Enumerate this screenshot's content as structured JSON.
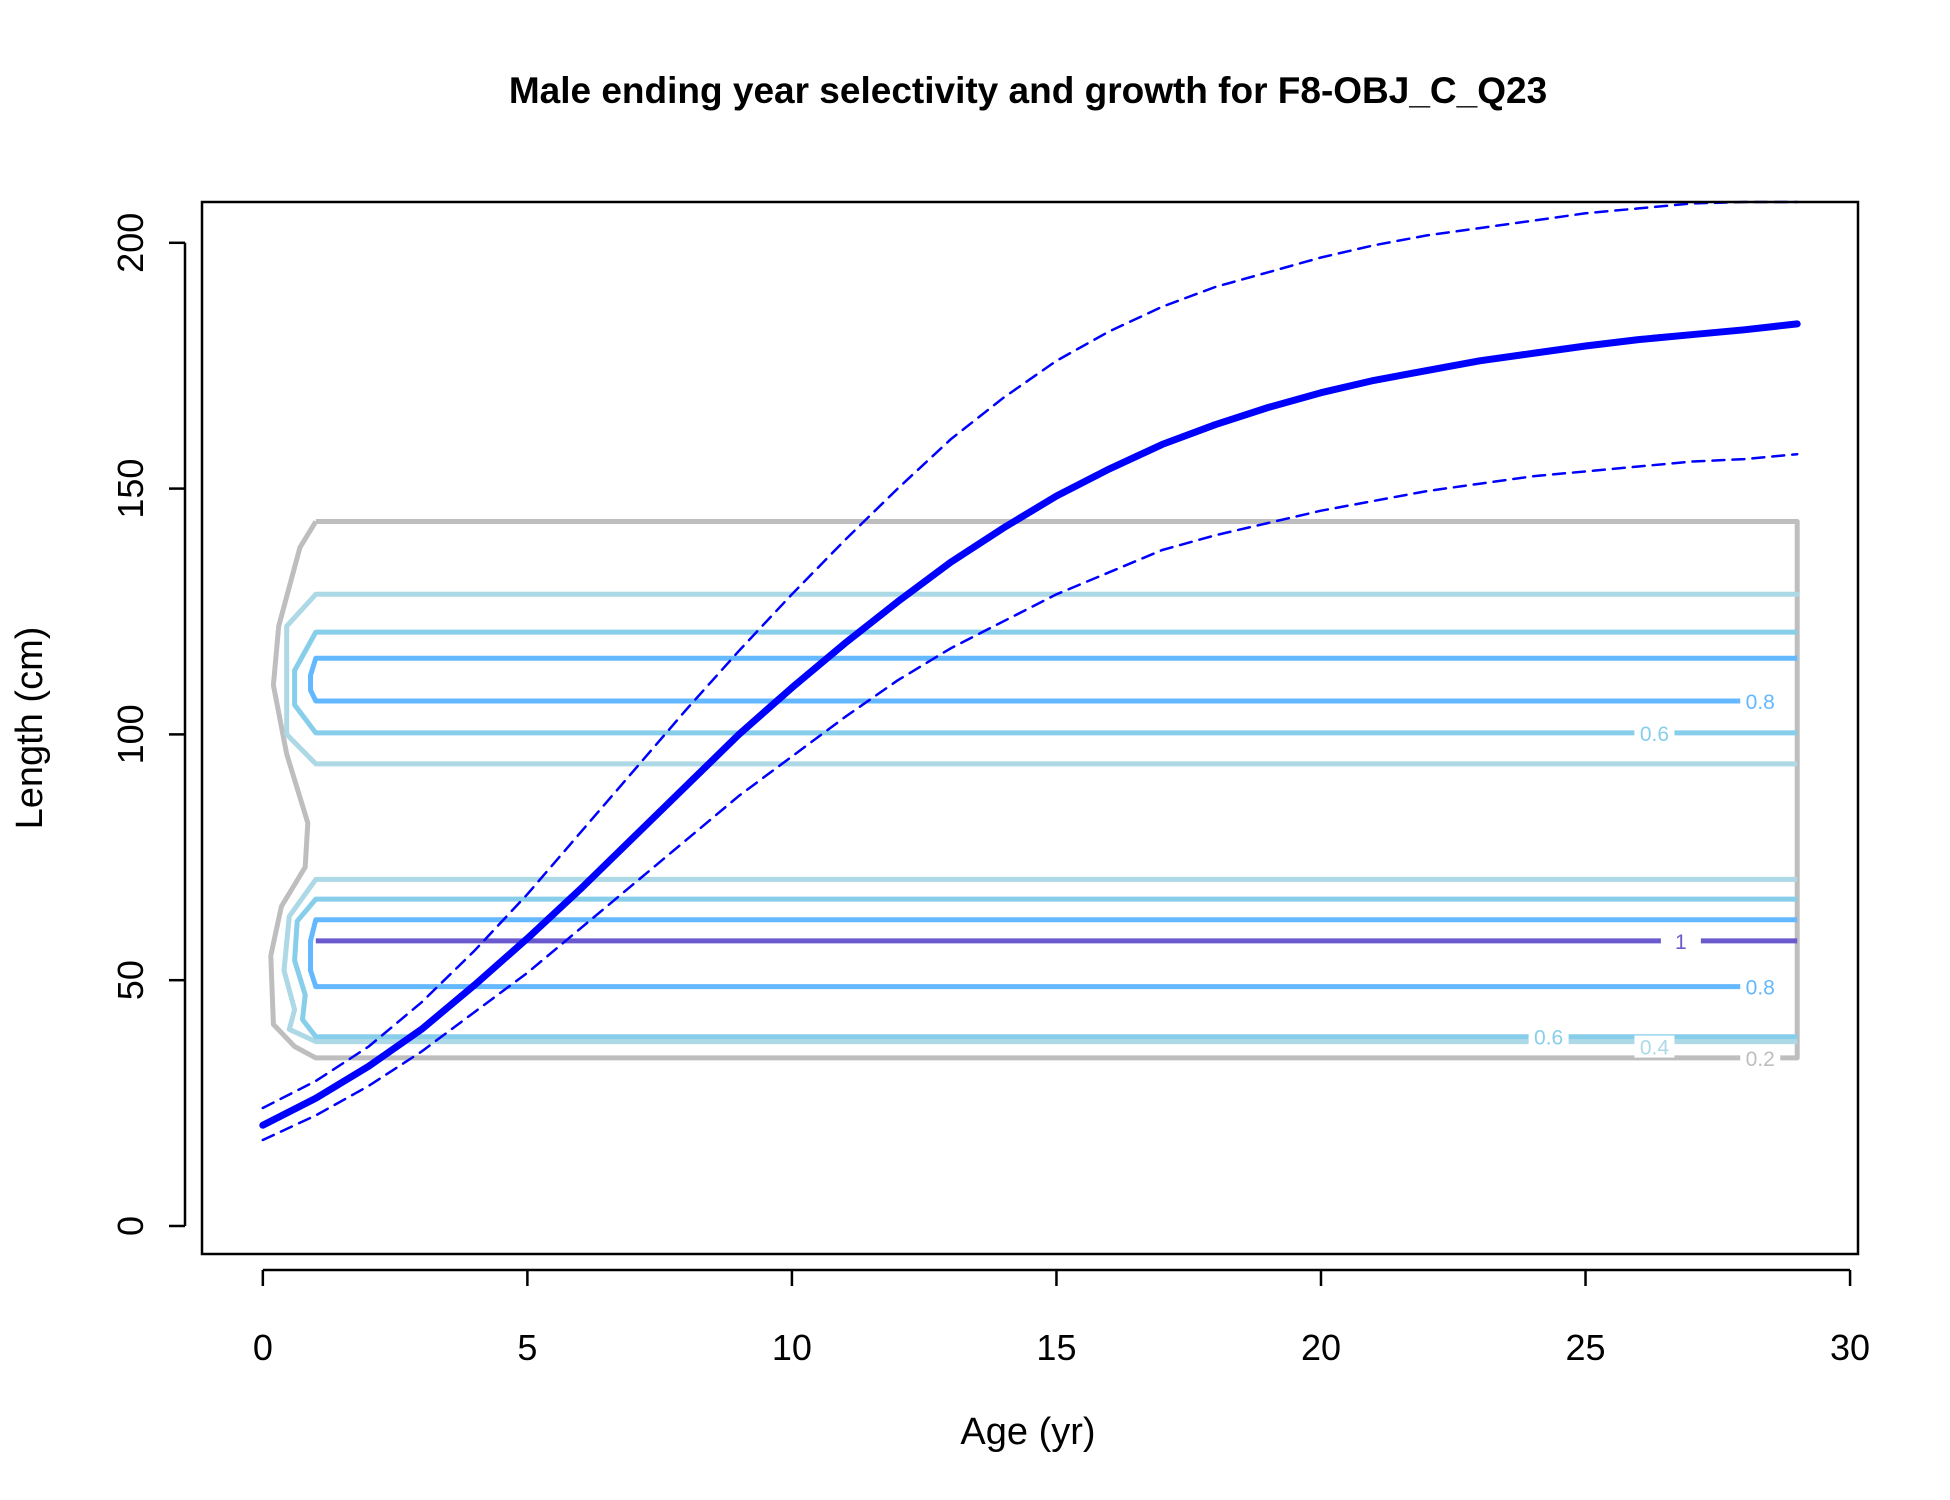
{
  "chart_data": {
    "type": "line",
    "title": "Male ending year selectivity and growth for F8-OBJ_C_Q23",
    "xlabel": "Age (yr)",
    "ylabel": "Length (cm)",
    "xlim": [
      -1.15,
      30.15
    ],
    "ylim": [
      -5.7,
      208.3
    ],
    "x_ticks": [
      0,
      5,
      10,
      15,
      20,
      25,
      30
    ],
    "y_ticks": [
      0,
      50,
      100,
      150,
      200
    ],
    "grid": false,
    "legend": "none",
    "series": [
      {
        "role": "growth-mean",
        "color": "#0000FF",
        "style": "solid",
        "x": [
          0,
          1,
          2,
          3,
          4,
          5,
          6,
          7,
          8,
          9,
          10,
          11,
          12,
          13,
          14,
          15,
          16,
          17,
          18,
          19,
          20,
          21,
          22,
          23,
          24,
          25,
          26,
          27,
          28,
          29
        ],
        "y": [
          20.5,
          26,
          32.5,
          40,
          49,
          58.5,
          68.5,
          79,
          89.5,
          100,
          109.5,
          118.5,
          127,
          135,
          142,
          148.5,
          154,
          159,
          163,
          166.5,
          169.5,
          172,
          174,
          176,
          177.5,
          179,
          180.3,
          181.3,
          182.3,
          183.5
        ]
      },
      {
        "role": "growth-upper",
        "color": "#0000FF",
        "style": "dashed",
        "x": [
          0,
          1,
          2,
          3,
          4,
          5,
          6,
          7,
          8,
          9,
          10,
          11,
          12,
          13,
          14,
          15,
          16,
          17,
          18,
          19,
          20,
          21,
          22,
          23,
          24,
          25,
          26,
          27,
          28,
          29
        ],
        "y": [
          24,
          29.5,
          36.5,
          45.5,
          56,
          67.5,
          80,
          92.5,
          105,
          117,
          128.5,
          139.5,
          150,
          160,
          168.5,
          176,
          182,
          187,
          191,
          194,
          197,
          199.5,
          201.5,
          203,
          204.5,
          206,
          207,
          208,
          208.5,
          209
        ]
      },
      {
        "role": "growth-lower",
        "color": "#0000FF",
        "style": "dashed",
        "x": [
          0,
          1,
          2,
          3,
          4,
          5,
          6,
          7,
          8,
          9,
          10,
          11,
          12,
          13,
          14,
          15,
          16,
          17,
          18,
          19,
          20,
          21,
          22,
          23,
          24,
          25,
          26,
          27,
          28,
          29
        ],
        "y": [
          17.5,
          22.5,
          28.5,
          35.5,
          43.5,
          51.5,
          60.5,
          69.5,
          78.5,
          87.5,
          95.5,
          103.5,
          111,
          117.5,
          123,
          128.5,
          133,
          137.5,
          140.5,
          143,
          145.5,
          147.5,
          149.5,
          151,
          152.5,
          153.5,
          154.5,
          155.5,
          156,
          157
        ]
      }
    ],
    "contours": [
      {
        "level": "0.2",
        "color": "#BEBEBE",
        "label_at": [
          28,
          34.2
        ],
        "path": [
          [
            1,
            143.3
          ],
          [
            29,
            143.3
          ],
          [
            29,
            34.2
          ],
          [
            1,
            34.2
          ],
          [
            0.6,
            36.5
          ],
          [
            0.2,
            41
          ],
          [
            0.15,
            55
          ],
          [
            0.35,
            65
          ],
          [
            0.8,
            73
          ],
          [
            0.85,
            82
          ],
          [
            0.45,
            96
          ],
          [
            0.2,
            110
          ],
          [
            0.3,
            122
          ],
          [
            0.7,
            138
          ],
          [
            1,
            143.3
          ]
        ]
      },
      {
        "level": "0.4",
        "color": "#ADD8E6",
        "label_at": [
          26,
          36.5
        ],
        "path": [
          [
            1,
            128.5
          ],
          [
            29,
            128.5
          ],
          [
            1,
            128.5
          ],
          [
            0.45,
            122
          ],
          [
            0.45,
            100
          ],
          [
            1,
            94
          ],
          [
            29,
            94
          ]
        ]
      },
      {
        "level": "0.4",
        "color": "#ADD8E6",
        "path": [
          [
            29,
            70.5
          ],
          [
            1,
            70.5
          ],
          [
            0.5,
            63
          ],
          [
            0.4,
            52
          ],
          [
            0.6,
            44
          ],
          [
            0.5,
            40
          ],
          [
            1,
            37.5
          ],
          [
            29,
            37.5
          ]
        ]
      },
      {
        "level": "0.6",
        "color": "#87CEEB",
        "label_at": [
          26,
          100.3
        ],
        "path": [
          [
            29,
            120.8
          ],
          [
            1,
            120.8
          ],
          [
            0.6,
            113
          ],
          [
            0.6,
            106
          ],
          [
            1,
            100.3
          ],
          [
            29,
            100.3
          ]
        ]
      },
      {
        "level": "0.6",
        "color": "#87CEEB",
        "label_at": [
          24,
          38.5
        ],
        "path": [
          [
            29,
            66.5
          ],
          [
            1,
            66.5
          ],
          [
            0.65,
            62
          ],
          [
            0.6,
            54
          ],
          [
            0.8,
            47
          ],
          [
            0.75,
            42
          ],
          [
            1,
            38.5
          ],
          [
            29,
            38.5
          ]
        ]
      },
      {
        "level": "0.8",
        "color": "#63B8FF",
        "label_at": [
          28,
          106.8
        ],
        "path": [
          [
            29,
            115.5
          ],
          [
            1,
            115.5
          ],
          [
            0.9,
            112
          ],
          [
            0.9,
            109
          ],
          [
            1,
            106.8
          ],
          [
            28,
            106.8
          ]
        ]
      },
      {
        "level": "0.8",
        "color": "#63B8FF",
        "label_at": [
          28,
          48.7
        ],
        "path": [
          [
            29,
            62.3
          ],
          [
            1,
            62.3
          ],
          [
            0.9,
            58
          ],
          [
            0.9,
            52
          ],
          [
            1,
            48.7
          ],
          [
            28,
            48.7
          ]
        ]
      },
      {
        "level": "1",
        "color": "#6A5ACD",
        "label_at": [
          26.5,
          58
        ],
        "path": [
          [
            1,
            58
          ],
          [
            29,
            58
          ]
        ]
      }
    ]
  }
}
